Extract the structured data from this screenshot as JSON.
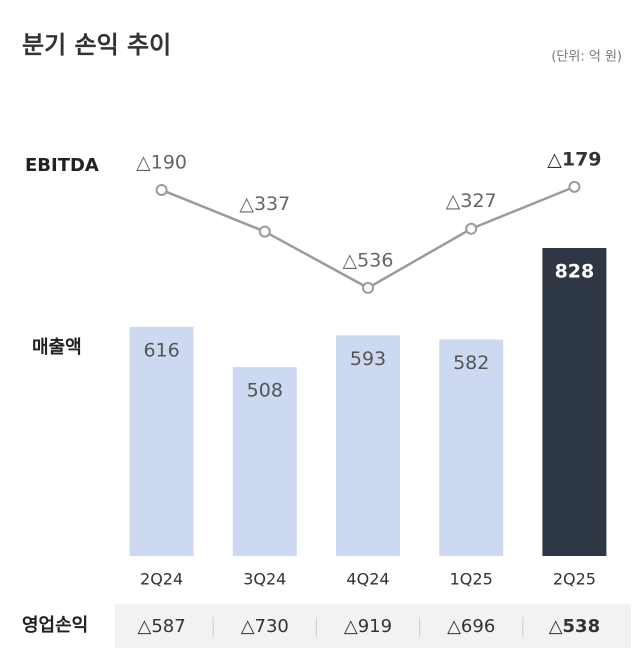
{
  "chart_data": {
    "type": "bar-line",
    "title": "분기 손익 추이",
    "subtitle": "(단위: 억 원)",
    "categories": [
      "2Q24",
      "3Q24",
      "4Q24",
      "1Q25",
      "2Q25"
    ],
    "ylim": [
      0,
      1000
    ],
    "y2lim": [
      -600,
      -100
    ],
    "series": [
      {
        "name": "매출액",
        "type": "bar",
        "colors": [
          "#cdd9f1",
          "#cdd9f1",
          "#cdd9f1",
          "#cdd9f1",
          "#2e3845"
        ],
        "values": [
          616,
          508,
          593,
          582,
          828
        ]
      },
      {
        "name": "EBITDA",
        "type": "line",
        "axis": "y2",
        "color": "#9b9b9b",
        "values": [
          -190,
          -337,
          -536,
          -327,
          -179
        ],
        "value_labels": [
          "△190",
          "△337",
          "△536",
          "△327",
          "△179"
        ]
      }
    ],
    "table_row": {
      "name": "영업손익",
      "values": [
        -587,
        -730,
        -919,
        -696,
        -538
      ],
      "value_labels": [
        "△587",
        "△730",
        "△919",
        "△696",
        "△538"
      ]
    }
  }
}
